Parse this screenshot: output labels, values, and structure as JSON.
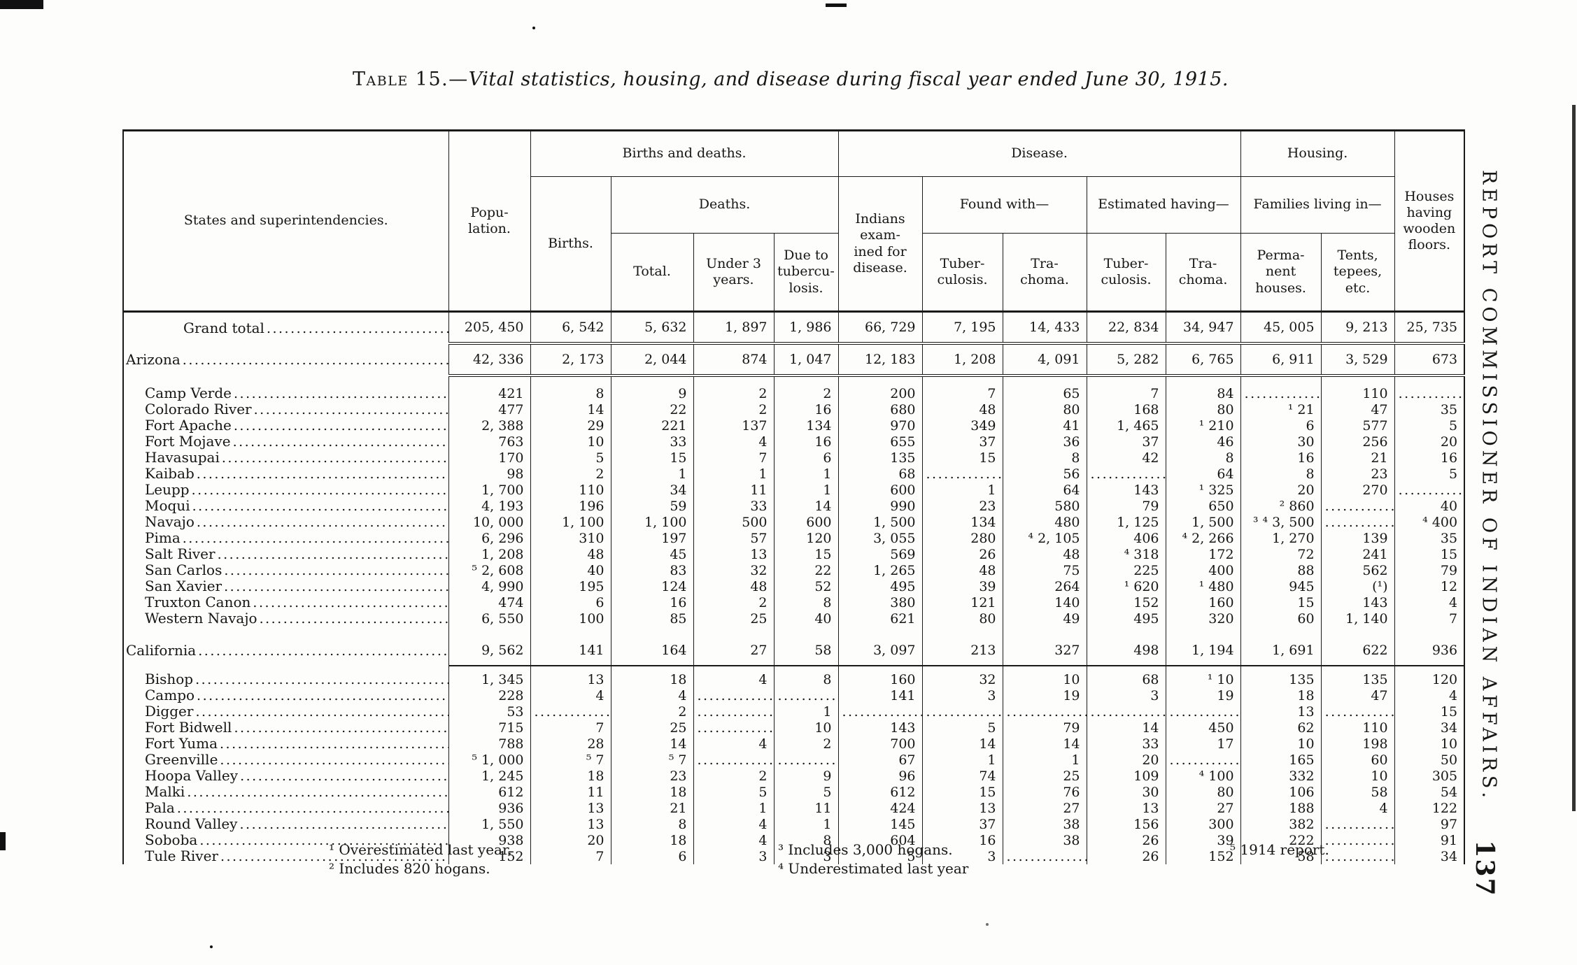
{
  "page": {
    "title_prefix": "Table 15.—",
    "title_italic": "Vital statistics, housing, and disease during fiscal year ended June 30, 1915.",
    "margin_text": "REPORT COMMISSIONER OF INDIAN AFFAIRS.",
    "page_number": "137"
  },
  "table": {
    "header": {
      "states": "States and superintendencies.",
      "population": "Popu-\nlation.",
      "births_deaths": "Births and deaths.",
      "disease": "Disease.",
      "housing": "Housing.",
      "wooden": "Houses\nhaving\nwooden\nfloors.",
      "births": "Births.",
      "deaths": "Deaths.",
      "examined": "Indians\nexam-\nined for\ndisease.",
      "found_with": "Found with—",
      "estimated_having": "Estimated having—",
      "families_living": "Families living in—",
      "total": "Total.",
      "under3": "Under 3\nyears.",
      "due_tb": "Due to\ntubercu-\nlosis.",
      "found_tb": "Tuber-\nculosis.",
      "found_trachoma": "Tra-\nchoma.",
      "est_tb": "Tuber-\nculosis.",
      "est_trachoma": "Tra-\nchoma.",
      "perm_houses": "Perma-\nnent\nhouses.",
      "tents": "Tents,\ntepees,\netc."
    },
    "rows": [
      {
        "label": "Grand total",
        "type": "grand",
        "rule": "dbl",
        "gap": false,
        "values": [
          "205, 450",
          "6, 542",
          "5, 632",
          "1, 897",
          "1, 986",
          "66, 729",
          "7, 195",
          "14, 433",
          "22, 834",
          "34, 947",
          "45, 005",
          "9, 213",
          "25, 735"
        ]
      },
      {
        "label": "Arizona",
        "type": "state",
        "rule": "dbl",
        "gap": false,
        "values": [
          "42, 336",
          "2, 173",
          "2, 044",
          "874",
          "1, 047",
          "12, 183",
          "1, 208",
          "4, 091",
          "5, 282",
          "6, 765",
          "6, 911",
          "3, 529",
          "673"
        ]
      },
      {
        "label": "Camp Verde",
        "type": "agency",
        "rule": "",
        "gap": true,
        "values": [
          "421",
          "8",
          "9",
          "2",
          "2",
          "200",
          "7",
          "65",
          "7",
          "84",
          "dots",
          "110",
          "dots"
        ]
      },
      {
        "label": "Colorado River",
        "type": "agency",
        "rule": "",
        "gap": false,
        "values": [
          "477",
          "14",
          "22",
          "2",
          "16",
          "680",
          "48",
          "80",
          "168",
          "80",
          "¹ 21",
          "47",
          "35"
        ]
      },
      {
        "label": "Fort Apache",
        "type": "agency",
        "rule": "",
        "gap": false,
        "values": [
          "2, 388",
          "29",
          "221",
          "137",
          "134",
          "970",
          "349",
          "41",
          "1, 465",
          "¹ 210",
          "6",
          "577",
          "5"
        ]
      },
      {
        "label": "Fort Mojave",
        "type": "agency",
        "rule": "",
        "gap": false,
        "values": [
          "763",
          "10",
          "33",
          "4",
          "16",
          "655",
          "37",
          "36",
          "37",
          "46",
          "30",
          "256",
          "20"
        ]
      },
      {
        "label": "Havasupai",
        "type": "agency",
        "rule": "",
        "gap": false,
        "values": [
          "170",
          "5",
          "15",
          "7",
          "6",
          "135",
          "15",
          "8",
          "42",
          "8",
          "16",
          "21",
          "16"
        ]
      },
      {
        "label": "Kaibab",
        "type": "agency",
        "rule": "",
        "gap": false,
        "values": [
          "98",
          "2",
          "1",
          "1",
          "1",
          "68",
          "dots",
          "56",
          "dots",
          "64",
          "8",
          "23",
          "5"
        ]
      },
      {
        "label": "Leupp",
        "type": "agency",
        "rule": "",
        "gap": false,
        "values": [
          "1, 700",
          "110",
          "34",
          "11",
          "1",
          "600",
          "1",
          "64",
          "143",
          "¹ 325",
          "20",
          "270",
          "dots"
        ]
      },
      {
        "label": "Moqui",
        "type": "agency",
        "rule": "",
        "gap": false,
        "values": [
          "4, 193",
          "196",
          "59",
          "33",
          "14",
          "990",
          "23",
          "580",
          "79",
          "650",
          "² 860",
          "dots",
          "40"
        ]
      },
      {
        "label": "Navajo",
        "type": "agency",
        "rule": "",
        "gap": false,
        "values": [
          "10, 000",
          "1, 100",
          "1, 100",
          "500",
          "600",
          "1, 500",
          "134",
          "480",
          "1, 125",
          "1, 500",
          "³ ⁴ 3, 500",
          "dots",
          "⁴ 400"
        ]
      },
      {
        "label": "Pima",
        "type": "agency",
        "rule": "",
        "gap": false,
        "values": [
          "6, 296",
          "310",
          "197",
          "57",
          "120",
          "3, 055",
          "280",
          "⁴ 2, 105",
          "406",
          "⁴ 2, 266",
          "1, 270",
          "139",
          "35"
        ]
      },
      {
        "label": "Salt River",
        "type": "agency",
        "rule": "",
        "gap": false,
        "values": [
          "1, 208",
          "48",
          "45",
          "13",
          "15",
          "569",
          "26",
          "48",
          "⁴ 318",
          "172",
          "72",
          "241",
          "15"
        ]
      },
      {
        "label": "San Carlos",
        "type": "agency",
        "rule": "",
        "gap": false,
        "values": [
          "⁵ 2, 608",
          "40",
          "83",
          "32",
          "22",
          "1, 265",
          "48",
          "75",
          "225",
          "400",
          "88",
          "562",
          "79"
        ]
      },
      {
        "label": "San Xavier",
        "type": "agency",
        "rule": "",
        "gap": false,
        "values": [
          "4, 990",
          "195",
          "124",
          "48",
          "52",
          "495",
          "39",
          "264",
          "¹ 620",
          "¹ 480",
          "945",
          "(¹)",
          "12"
        ]
      },
      {
        "label": "Truxton Canon",
        "type": "agency",
        "rule": "",
        "gap": false,
        "values": [
          "474",
          "6",
          "16",
          "2",
          "8",
          "380",
          "121",
          "140",
          "152",
          "160",
          "15",
          "143",
          "4"
        ]
      },
      {
        "label": "Western Navajo",
        "type": "agency",
        "rule": "",
        "gap": false,
        "values": [
          "6, 550",
          "100",
          "85",
          "25",
          "40",
          "621",
          "80",
          "49",
          "495",
          "320",
          "60",
          "1, 140",
          "7"
        ]
      },
      {
        "label": "California",
        "type": "state",
        "rule": "sgl",
        "gap": true,
        "values": [
          "9, 562",
          "141",
          "164",
          "27",
          "58",
          "3, 097",
          "213",
          "327",
          "498",
          "1, 194",
          "1, 691",
          "622",
          "936"
        ]
      },
      {
        "label": "Bishop",
        "type": "agency",
        "rule": "",
        "gap2": true,
        "values": [
          "1, 345",
          "13",
          "18",
          "4",
          "8",
          "160",
          "32",
          "10",
          "68",
          "¹ 10",
          "135",
          "135",
          "120"
        ]
      },
      {
        "label": "Campo",
        "type": "agency",
        "rule": "",
        "gap": false,
        "values": [
          "228",
          "4",
          "4",
          "dots",
          "dots",
          "141",
          "3",
          "19",
          "3",
          "19",
          "18",
          "47",
          "4"
        ]
      },
      {
        "label": "Digger",
        "type": "agency",
        "rule": "",
        "gap": false,
        "values": [
          "53",
          "dots",
          "2",
          "dots",
          "1",
          "dots",
          "dots",
          "dots",
          "dots",
          "dots",
          "13",
          "dots",
          "15"
        ]
      },
      {
        "label": "Fort Bidwell",
        "type": "agency",
        "rule": "",
        "gap": false,
        "values": [
          "715",
          "7",
          "25",
          "dots",
          "10",
          "143",
          "5",
          "79",
          "14",
          "450",
          "62",
          "110",
          "34"
        ]
      },
      {
        "label": "Fort Yuma",
        "type": "agency",
        "rule": "",
        "gap": false,
        "values": [
          "788",
          "28",
          "14",
          "4",
          "2",
          "700",
          "14",
          "14",
          "33",
          "17",
          "10",
          "198",
          "10"
        ]
      },
      {
        "label": "Greenville",
        "type": "agency",
        "rule": "",
        "gap": false,
        "values": [
          "⁵ 1, 000",
          "⁵ 7",
          "⁵ 7",
          "dots",
          "dots",
          "67",
          "1",
          "1",
          "20",
          "dots",
          "165",
          "60",
          "50"
        ]
      },
      {
        "label": "Hoopa Valley",
        "type": "agency",
        "rule": "",
        "gap": false,
        "values": [
          "1, 245",
          "18",
          "23",
          "2",
          "9",
          "96",
          "74",
          "25",
          "109",
          "⁴ 100",
          "332",
          "10",
          "305"
        ]
      },
      {
        "label": "Malki",
        "type": "agency",
        "rule": "",
        "gap": false,
        "values": [
          "612",
          "11",
          "18",
          "5",
          "5",
          "612",
          "15",
          "76",
          "30",
          "80",
          "106",
          "58",
          "54"
        ]
      },
      {
        "label": "Pala",
        "type": "agency",
        "rule": "",
        "gap": false,
        "values": [
          "936",
          "13",
          "21",
          "1",
          "11",
          "424",
          "13",
          "27",
          "13",
          "27",
          "188",
          "4",
          "122"
        ]
      },
      {
        "label": "Round Valley",
        "type": "agency",
        "rule": "",
        "gap": false,
        "values": [
          "1, 550",
          "13",
          "8",
          "4",
          "1",
          "145",
          "37",
          "38",
          "156",
          "300",
          "382",
          "dots",
          "97"
        ]
      },
      {
        "label": "Soboba",
        "type": "agency",
        "rule": "",
        "gap": false,
        "values": [
          "938",
          "20",
          "18",
          "4",
          "8",
          "604",
          "16",
          "38",
          "26",
          "39",
          "222",
          "dots",
          "91"
        ]
      },
      {
        "label": "Tule River",
        "type": "agency",
        "rule": "",
        "gap": false,
        "values": [
          "152",
          "7",
          "6",
          "3",
          "3",
          "5",
          "3",
          "dots",
          "26",
          "152",
          "58",
          "dots",
          "34"
        ]
      }
    ]
  },
  "footnotes": {
    "col1": [
      "¹ Overestimated last year.",
      "² Includes 820 hogans."
    ],
    "col2": [
      "³ Includes 3,000 hogans.",
      "⁴ Underestimated last year"
    ],
    "col3": [
      "⁵ 1914 report."
    ]
  }
}
